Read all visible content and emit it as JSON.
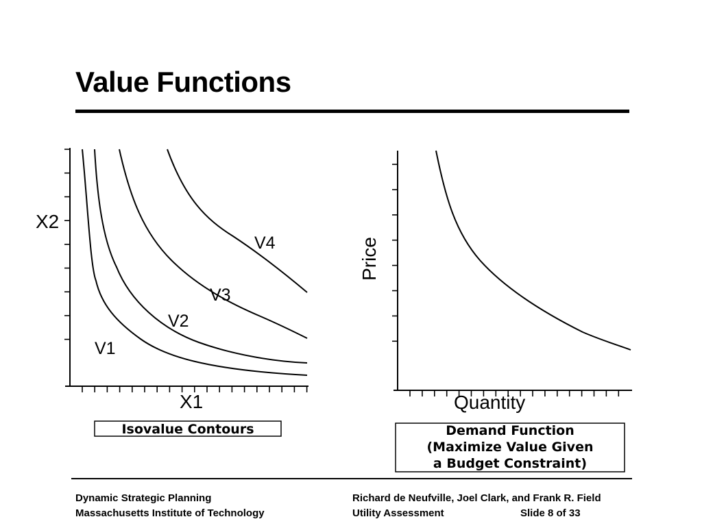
{
  "slide": {
    "title": "Value Functions",
    "footer": {
      "left_line1": "Dynamic Strategic Planning",
      "left_line2": "Massachusetts Institute of Technology",
      "right_line1": "Richard de Neufville, Joel Clark, and Frank R. Field",
      "right_line2": "Utility Assessment",
      "slide_number": "Slide 8 of 33"
    }
  },
  "chart_data": [
    {
      "type": "line",
      "xlabel": "X1",
      "ylabel": "X2",
      "caption": "Isovalue Contours",
      "series": [
        {
          "name": "V1"
        },
        {
          "name": "V2"
        },
        {
          "name": "V3"
        },
        {
          "name": "V4"
        }
      ]
    },
    {
      "type": "line",
      "xlabel": "Quantity",
      "ylabel": "Price",
      "caption_lines": [
        "Demand Function",
        "(Maximize Value Given",
        "a Budget Constraint)"
      ]
    }
  ]
}
